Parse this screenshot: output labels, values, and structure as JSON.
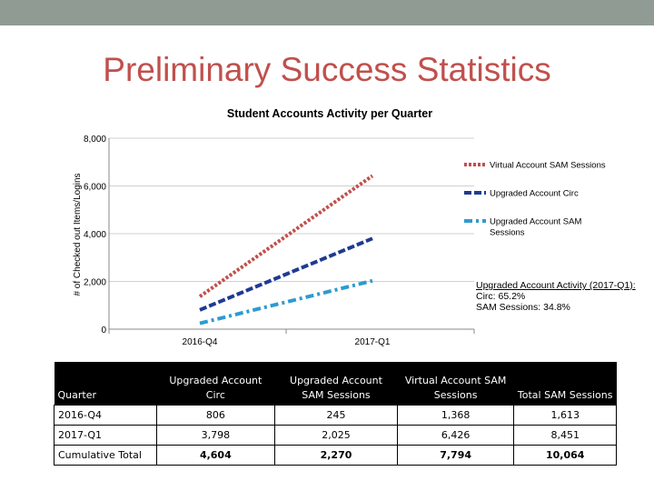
{
  "slide": {
    "title": "Preliminary Success Statistics"
  },
  "chart_data": {
    "type": "line",
    "title": "Student Accounts Activity per Quarter",
    "ylabel": "# of Checked out Items/Logins",
    "xlabel": "",
    "categories": [
      "2016-Q4",
      "2017-Q1"
    ],
    "ylim": [
      0,
      8000
    ],
    "yticks": [
      0,
      2000,
      4000,
      6000,
      8000
    ],
    "ytick_labels": [
      "0",
      "2,000",
      "4,000",
      "6,000",
      "8,000"
    ],
    "grid": true,
    "legend_position": "right",
    "series": [
      {
        "name": "Virtual Account SAM Sessions",
        "values": [
          1368,
          6426
        ],
        "color": "#c0504d",
        "dash": "dotted"
      },
      {
        "name": "Upgraded Account Circ",
        "values": [
          806,
          3798
        ],
        "color": "#1f3a93",
        "dash": "dashed"
      },
      {
        "name": "Upgraded Account SAM Sessions",
        "values": [
          245,
          2025
        ],
        "color": "#2e9bd0",
        "dash": "dashdot"
      }
    ],
    "annotation": {
      "heading": "Upgraded Account Activity (2017-Q1):",
      "lines": [
        "Circ: 65.2%",
        "SAM Sessions: 34.8%"
      ]
    }
  },
  "table": {
    "headers": [
      "Quarter",
      "Upgraded Account Circ",
      "Upgraded Account SAM Sessions",
      "Virtual Account SAM Sessions",
      "Total SAM Sessions"
    ],
    "rows": [
      [
        "2016-Q4",
        "806",
        "245",
        "1,368",
        "1,613"
      ],
      [
        "2017-Q1",
        "3,798",
        "2,025",
        "6,426",
        "8,451"
      ],
      [
        "Cumulative Total",
        "4,604",
        "2,270",
        "7,794",
        "10,064"
      ]
    ]
  }
}
